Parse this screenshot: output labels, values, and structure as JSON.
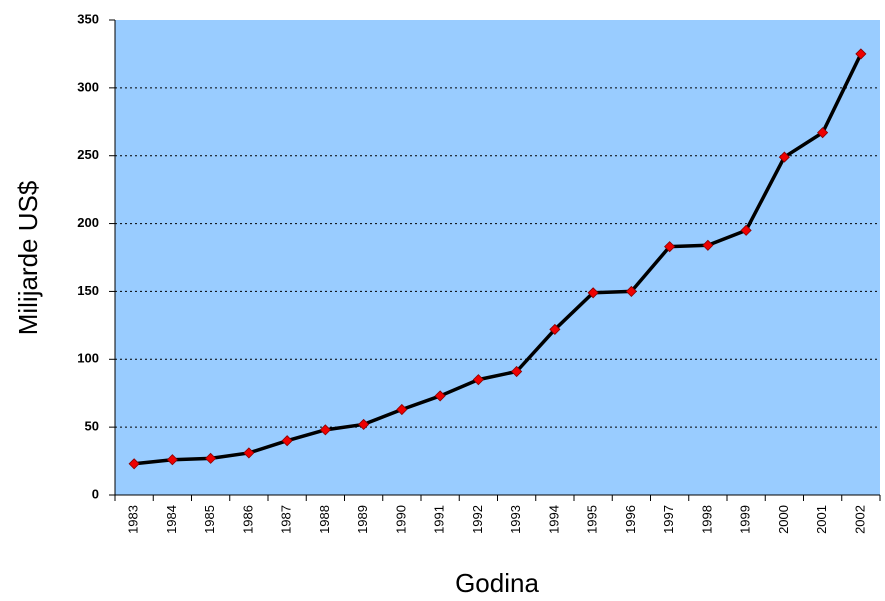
{
  "chart_data": {
    "type": "line",
    "x_label": "Godina",
    "y_label": "Milijarde US$",
    "categories": [
      "1983",
      "1984",
      "1985",
      "1986",
      "1987",
      "1988",
      "1989",
      "1990",
      "1991",
      "1992",
      "1993",
      "1994",
      "1995",
      "1996",
      "1997",
      "1998",
      "1999",
      "2000",
      "2001",
      "2002"
    ],
    "values": [
      23,
      26,
      27,
      31,
      40,
      48,
      52,
      63,
      73,
      85,
      91,
      122,
      149,
      150,
      183,
      184,
      195,
      249,
      267,
      325
    ],
    "color": "#000000",
    "marker_color": "#ee0000",
    "background": "#99ccff",
    "ylim": [
      0,
      350
    ],
    "yticks": [
      0,
      50,
      100,
      150,
      200,
      250,
      300,
      350
    ],
    "grid": true
  }
}
